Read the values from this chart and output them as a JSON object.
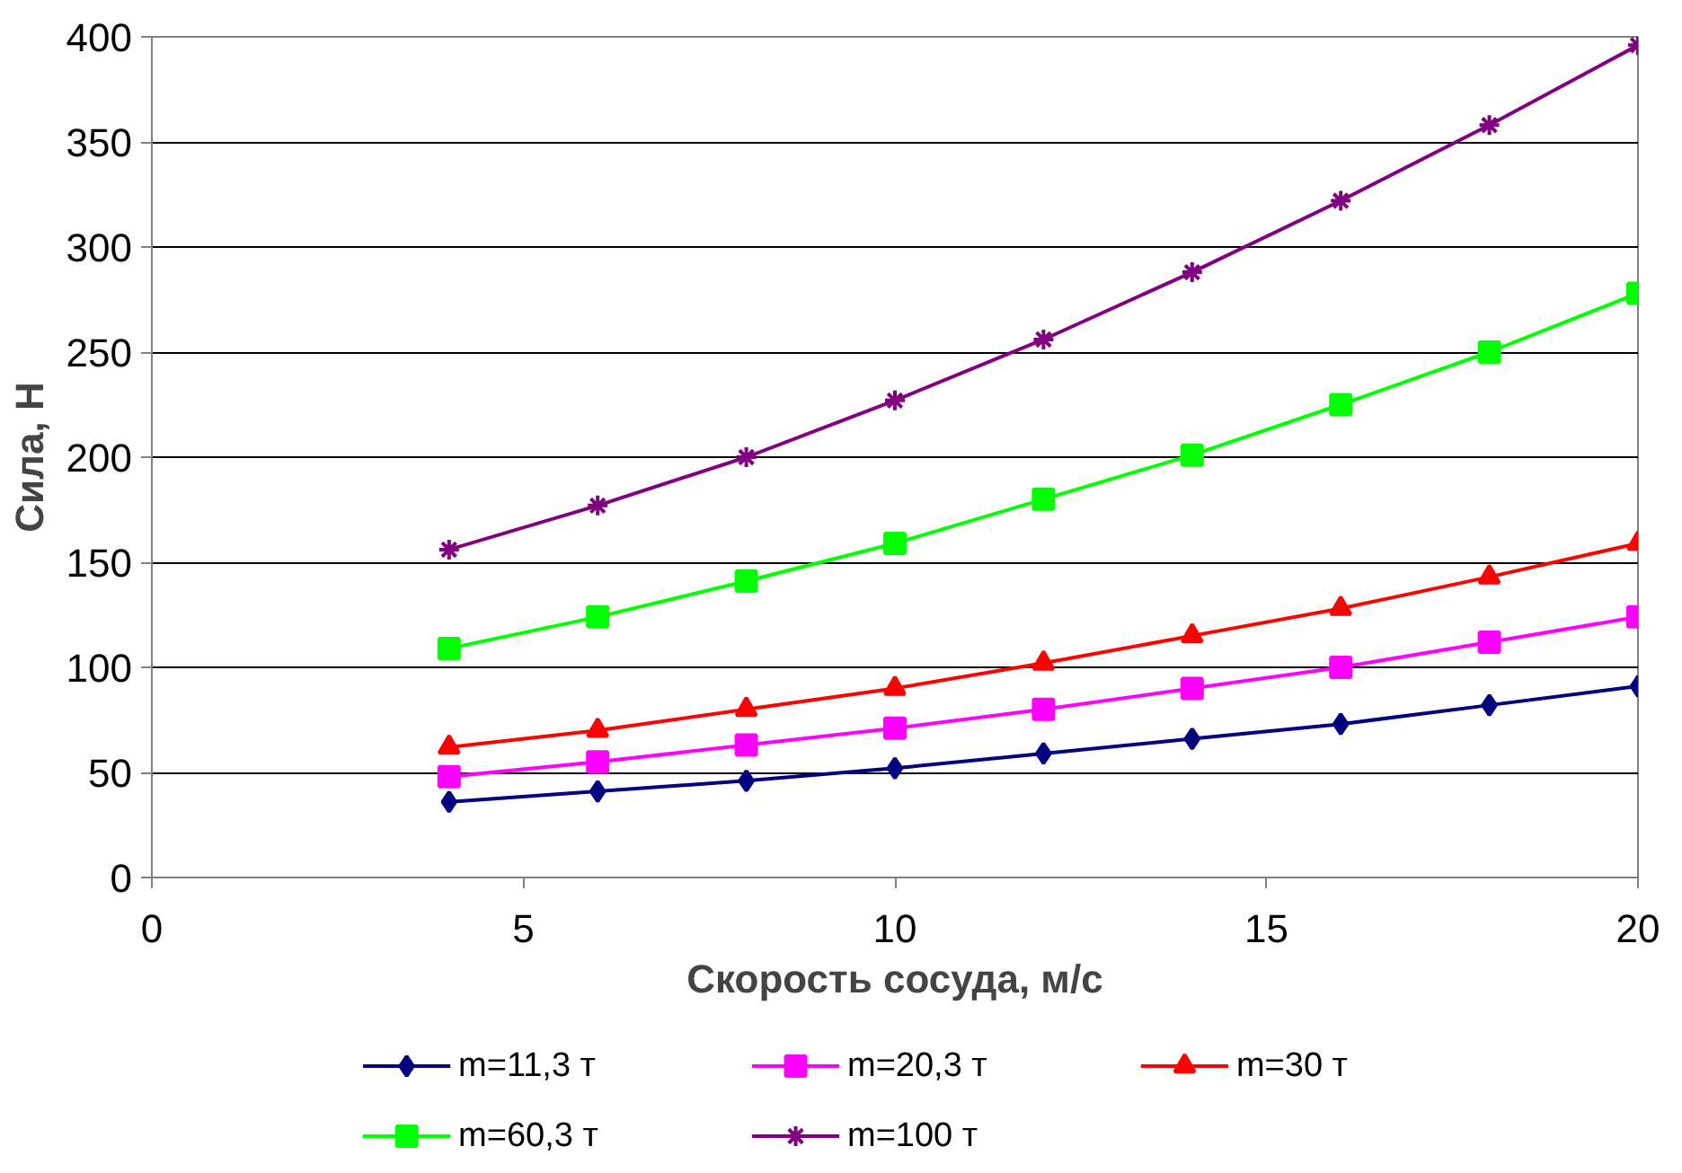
{
  "chart_data": {
    "type": "line",
    "xlabel": "Скорость сосуда, м/с",
    "ylabel": "Сила, Н",
    "x": [
      4,
      6,
      8,
      10,
      12,
      14,
      16,
      18,
      20
    ],
    "series": [
      {
        "name": "m=11,3 т",
        "color": "#000080",
        "marker": "diamond",
        "values": [
          36,
          41,
          46,
          52,
          59,
          66,
          73,
          82,
          91
        ]
      },
      {
        "name": "m=20,3 т",
        "color": "#ff00ff",
        "marker": "square",
        "values": [
          48,
          55,
          63,
          71,
          80,
          90,
          100,
          112,
          124
        ]
      },
      {
        "name": "m=30 т",
        "color": "#ff0000",
        "marker": "triangle",
        "values": [
          62,
          70,
          80,
          90,
          102,
          115,
          128,
          143,
          159
        ]
      },
      {
        "name": "m=60,3 т",
        "color": "#00ff00",
        "marker": "square",
        "values": [
          109,
          124,
          141,
          159,
          180,
          201,
          225,
          250,
          278
        ]
      },
      {
        "name": "m=100 т",
        "color": "#800080",
        "marker": "cross",
        "values": [
          156,
          177,
          200,
          227,
          256,
          288,
          322,
          358,
          396
        ]
      }
    ],
    "xlim": [
      0,
      20
    ],
    "xticks": [
      0,
      5,
      10,
      15,
      20
    ],
    "ylim": [
      0,
      400
    ],
    "yticks": [
      0,
      50,
      100,
      150,
      200,
      250,
      300,
      350,
      400
    ],
    "grid": "y",
    "legend": "bottom",
    "line_style": "solid"
  }
}
